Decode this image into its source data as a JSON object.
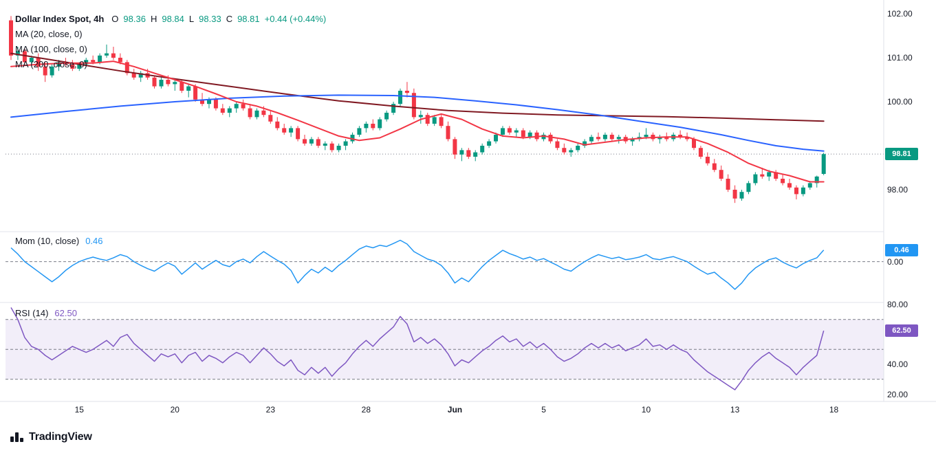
{
  "header": {
    "title": "Dollar Index Spot, 4h",
    "ohlc": {
      "o_key": "O",
      "o_val": "98.36",
      "h_key": "H",
      "h_val": "98.84",
      "l_key": "L",
      "l_val": "98.33",
      "c_key": "C",
      "c_val": "98.81",
      "change": "+0.44 (+0.44%)"
    },
    "ma_rows": [
      "MA (20, close, 0)",
      "MA (100, close, 0)",
      "MA (200, close, 0)"
    ]
  },
  "panes": {
    "momentum": {
      "label": "Mom (10, close)",
      "value_text": "0.46"
    },
    "rsi": {
      "label": "RSI (14)",
      "value_text": "62.50"
    }
  },
  "footer": {
    "logo_text": "TradingView"
  },
  "chart_data": {
    "type": "candlestick_with_indicators",
    "symbol": "Dollar Index Spot",
    "timeframe": "4h",
    "last_bar": {
      "open": 98.36,
      "high": 98.84,
      "low": 98.33,
      "close": 98.81,
      "change": 0.44,
      "change_pct": 0.44
    },
    "visible_price_range": [
      97.1,
      102.1
    ],
    "momentum_range": [
      -1.35,
      1.0
    ],
    "rsi_range": [
      20,
      80
    ],
    "price_ticks": [
      {
        "label": "102.00",
        "value": 102
      },
      {
        "label": "101.00",
        "value": 101
      },
      {
        "label": "100.00",
        "value": 100
      },
      {
        "label": "98.00",
        "value": 98
      }
    ],
    "time_ticks": [
      {
        "label": "15",
        "i": 10
      },
      {
        "label": "20",
        "i": 24
      },
      {
        "label": "23",
        "i": 38
      },
      {
        "label": "28",
        "i": 52
      },
      {
        "label": "Jun",
        "i": 65,
        "bold": true
      },
      {
        "label": "5",
        "i": 78
      },
      {
        "label": "10",
        "i": 93
      },
      {
        "label": "13",
        "i": 106
      },
      {
        "label": "18",
        "i": 120.5
      }
    ],
    "candles": [
      [
        101.85,
        101.95,
        100.95,
        101.05
      ],
      [
        101.05,
        101.25,
        100.95,
        101.15
      ],
      [
        101.15,
        101.2,
        100.85,
        100.9
      ],
      [
        100.9,
        101.05,
        100.8,
        101.0
      ],
      [
        101.0,
        101.1,
        100.7,
        100.8
      ],
      [
        100.8,
        100.9,
        100.45,
        100.6
      ],
      [
        100.6,
        100.85,
        100.55,
        100.8
      ],
      [
        100.8,
        100.95,
        100.7,
        100.9
      ],
      [
        100.9,
        101.0,
        100.8,
        100.85
      ],
      [
        100.85,
        100.95,
        100.7,
        100.75
      ],
      [
        100.75,
        100.9,
        100.7,
        100.85
      ],
      [
        100.85,
        101.0,
        100.8,
        100.95
      ],
      [
        100.95,
        101.05,
        100.85,
        100.9
      ],
      [
        100.9,
        101.1,
        100.85,
        101.05
      ],
      [
        101.05,
        101.3,
        101.0,
        101.1
      ],
      [
        101.1,
        101.25,
        100.95,
        101.0
      ],
      [
        101.0,
        101.1,
        100.85,
        100.9
      ],
      [
        100.9,
        100.95,
        100.6,
        100.65
      ],
      [
        100.65,
        100.75,
        100.5,
        100.55
      ],
      [
        100.55,
        100.7,
        100.45,
        100.65
      ],
      [
        100.65,
        100.75,
        100.5,
        100.55
      ],
      [
        100.55,
        100.6,
        100.3,
        100.35
      ],
      [
        100.35,
        100.55,
        100.3,
        100.5
      ],
      [
        100.5,
        100.6,
        100.35,
        100.4
      ],
      [
        100.4,
        100.5,
        100.25,
        100.45
      ],
      [
        100.45,
        100.5,
        100.2,
        100.25
      ],
      [
        100.25,
        100.4,
        100.1,
        100.35
      ],
      [
        100.35,
        100.4,
        100.0,
        100.05
      ],
      [
        100.05,
        100.2,
        99.9,
        99.95
      ],
      [
        99.95,
        100.1,
        99.85,
        100.05
      ],
      [
        100.05,
        100.1,
        99.8,
        99.85
      ],
      [
        99.85,
        99.95,
        99.7,
        99.75
      ],
      [
        99.75,
        99.9,
        99.65,
        99.85
      ],
      [
        99.85,
        100.0,
        99.75,
        99.95
      ],
      [
        99.95,
        100.05,
        99.8,
        99.85
      ],
      [
        99.85,
        99.95,
        99.6,
        99.65
      ],
      [
        99.65,
        99.85,
        99.6,
        99.8
      ],
      [
        99.8,
        99.9,
        99.65,
        99.7
      ],
      [
        99.7,
        99.8,
        99.5,
        99.55
      ],
      [
        99.55,
        99.65,
        99.35,
        99.4
      ],
      [
        99.4,
        99.5,
        99.25,
        99.3
      ],
      [
        99.3,
        99.45,
        99.2,
        99.4
      ],
      [
        99.4,
        99.45,
        99.1,
        99.15
      ],
      [
        99.15,
        99.25,
        99.0,
        99.05
      ],
      [
        99.05,
        99.2,
        99.0,
        99.15
      ],
      [
        99.15,
        99.2,
        98.95,
        99.0
      ],
      [
        99.0,
        99.1,
        98.9,
        99.05
      ],
      [
        99.05,
        99.1,
        98.85,
        98.9
      ],
      [
        98.9,
        99.05,
        98.85,
        99.0
      ],
      [
        99.0,
        99.15,
        98.9,
        99.1
      ],
      [
        99.1,
        99.3,
        99.05,
        99.25
      ],
      [
        99.25,
        99.45,
        99.2,
        99.4
      ],
      [
        99.4,
        99.55,
        99.3,
        99.5
      ],
      [
        99.5,
        99.6,
        99.35,
        99.4
      ],
      [
        99.4,
        99.65,
        99.35,
        99.6
      ],
      [
        99.6,
        99.8,
        99.55,
        99.75
      ],
      [
        99.75,
        100.0,
        99.7,
        99.95
      ],
      [
        99.95,
        100.3,
        99.9,
        100.25
      ],
      [
        100.25,
        100.45,
        100.1,
        100.2
      ],
      [
        100.2,
        100.3,
        99.6,
        99.65
      ],
      [
        99.65,
        99.8,
        99.5,
        99.7
      ],
      [
        99.7,
        99.75,
        99.45,
        99.5
      ],
      [
        99.5,
        99.7,
        99.45,
        99.65
      ],
      [
        99.65,
        99.7,
        99.4,
        99.45
      ],
      [
        99.45,
        99.55,
        99.1,
        99.15
      ],
      [
        99.15,
        99.2,
        98.7,
        98.8
      ],
      [
        98.8,
        98.95,
        98.65,
        98.9
      ],
      [
        98.9,
        98.95,
        98.7,
        98.75
      ],
      [
        98.75,
        98.9,
        98.65,
        98.85
      ],
      [
        98.85,
        99.05,
        98.8,
        99.0
      ],
      [
        99.0,
        99.15,
        98.95,
        99.1
      ],
      [
        99.1,
        99.3,
        99.05,
        99.25
      ],
      [
        99.25,
        99.45,
        99.2,
        99.4
      ],
      [
        99.4,
        99.45,
        99.25,
        99.3
      ],
      [
        99.3,
        99.4,
        99.2,
        99.35
      ],
      [
        99.35,
        99.4,
        99.15,
        99.2
      ],
      [
        99.2,
        99.35,
        99.15,
        99.3
      ],
      [
        99.3,
        99.35,
        99.1,
        99.15
      ],
      [
        99.15,
        99.3,
        99.1,
        99.25
      ],
      [
        99.25,
        99.3,
        99.05,
        99.1
      ],
      [
        99.1,
        99.15,
        98.9,
        98.95
      ],
      [
        98.95,
        99.05,
        98.8,
        98.85
      ],
      [
        98.85,
        98.95,
        98.75,
        98.9
      ],
      [
        98.9,
        99.05,
        98.85,
        99.0
      ],
      [
        99.0,
        99.15,
        98.95,
        99.1
      ],
      [
        99.1,
        99.25,
        99.05,
        99.2
      ],
      [
        99.2,
        99.3,
        99.1,
        99.15
      ],
      [
        99.15,
        99.3,
        99.1,
        99.25
      ],
      [
        99.25,
        99.3,
        99.1,
        99.15
      ],
      [
        99.15,
        99.25,
        99.05,
        99.2
      ],
      [
        99.2,
        99.25,
        99.05,
        99.1
      ],
      [
        99.1,
        99.2,
        99.0,
        99.15
      ],
      [
        99.15,
        99.3,
        99.1,
        99.2
      ],
      [
        99.2,
        99.4,
        99.15,
        99.25
      ],
      [
        99.25,
        99.3,
        99.1,
        99.15
      ],
      [
        99.15,
        99.25,
        99.05,
        99.2
      ],
      [
        99.2,
        99.3,
        99.1,
        99.15
      ],
      [
        99.15,
        99.3,
        99.1,
        99.25
      ],
      [
        99.25,
        99.35,
        99.15,
        99.2
      ],
      [
        99.2,
        99.3,
        99.1,
        99.15
      ],
      [
        99.15,
        99.2,
        98.9,
        98.95
      ],
      [
        98.95,
        99.0,
        98.7,
        98.75
      ],
      [
        98.75,
        98.85,
        98.55,
        98.6
      ],
      [
        98.6,
        98.7,
        98.4,
        98.45
      ],
      [
        98.45,
        98.55,
        98.2,
        98.25
      ],
      [
        98.25,
        98.35,
        97.95,
        98.0
      ],
      [
        98.0,
        98.1,
        97.7,
        97.8
      ],
      [
        97.8,
        98.0,
        97.75,
        97.95
      ],
      [
        97.95,
        98.2,
        97.9,
        98.15
      ],
      [
        98.15,
        98.4,
        98.1,
        98.35
      ],
      [
        98.35,
        98.5,
        98.25,
        98.3
      ],
      [
        98.3,
        98.45,
        98.2,
        98.4
      ],
      [
        98.4,
        98.45,
        98.2,
        98.25
      ],
      [
        98.25,
        98.35,
        98.1,
        98.15
      ],
      [
        98.15,
        98.25,
        98.0,
        98.05
      ],
      [
        98.05,
        98.1,
        97.78,
        97.9
      ],
      [
        97.9,
        98.1,
        97.85,
        98.05
      ],
      [
        98.05,
        98.2,
        98.0,
        98.15
      ],
      [
        98.15,
        98.32,
        98.05,
        98.3
      ],
      [
        98.36,
        98.84,
        98.33,
        98.81
      ]
    ],
    "ma20": {
      "period": 20,
      "color": "#f23645",
      "points": [
        [
          0,
          100.8
        ],
        [
          4,
          100.85
        ],
        [
          8,
          100.88
        ],
        [
          12,
          100.88
        ],
        [
          15,
          100.92
        ],
        [
          18,
          100.8
        ],
        [
          21,
          100.65
        ],
        [
          24,
          100.5
        ],
        [
          27,
          100.35
        ],
        [
          30,
          100.18
        ],
        [
          33,
          100.0
        ],
        [
          36,
          99.9
        ],
        [
          39,
          99.75
        ],
        [
          42,
          99.58
        ],
        [
          45,
          99.4
        ],
        [
          48,
          99.22
        ],
        [
          51,
          99.12
        ],
        [
          54,
          99.18
        ],
        [
          57,
          99.38
        ],
        [
          60,
          99.6
        ],
        [
          63,
          99.72
        ],
        [
          66,
          99.6
        ],
        [
          69,
          99.38
        ],
        [
          72,
          99.22
        ],
        [
          75,
          99.18
        ],
        [
          78,
          99.22
        ],
        [
          81,
          99.15
        ],
        [
          84,
          99.02
        ],
        [
          87,
          99.08
        ],
        [
          90,
          99.14
        ],
        [
          93,
          99.18
        ],
        [
          96,
          99.2
        ],
        [
          99,
          99.2
        ],
        [
          102,
          99.05
        ],
        [
          105,
          98.85
        ],
        [
          108,
          98.6
        ],
        [
          111,
          98.42
        ],
        [
          114,
          98.32
        ],
        [
          117,
          98.18
        ],
        [
          119,
          98.18
        ]
      ]
    },
    "ma100": {
      "period": 100,
      "color": "#2962ff",
      "points": [
        [
          0,
          99.65
        ],
        [
          8,
          99.78
        ],
        [
          16,
          99.9
        ],
        [
          24,
          100.0
        ],
        [
          32,
          100.08
        ],
        [
          40,
          100.13
        ],
        [
          48,
          100.15
        ],
        [
          56,
          100.14
        ],
        [
          62,
          100.1
        ],
        [
          68,
          100.02
        ],
        [
          74,
          99.93
        ],
        [
          80,
          99.82
        ],
        [
          86,
          99.7
        ],
        [
          92,
          99.56
        ],
        [
          98,
          99.42
        ],
        [
          104,
          99.25
        ],
        [
          108,
          99.12
        ],
        [
          112,
          99.0
        ],
        [
          116,
          98.92
        ],
        [
          119,
          98.88
        ]
      ]
    },
    "ma200": {
      "period": 200,
      "color": "#801922",
      "points": [
        [
          0,
          101.1
        ],
        [
          8,
          100.9
        ],
        [
          16,
          100.7
        ],
        [
          24,
          100.52
        ],
        [
          32,
          100.35
        ],
        [
          40,
          100.18
        ],
        [
          48,
          100.02
        ],
        [
          56,
          99.9
        ],
        [
          64,
          99.8
        ],
        [
          72,
          99.74
        ],
        [
          80,
          99.7
        ],
        [
          88,
          99.68
        ],
        [
          96,
          99.66
        ],
        [
          104,
          99.63
        ],
        [
          112,
          99.59
        ],
        [
          119,
          99.56
        ]
      ]
    },
    "momentum": {
      "period": 10,
      "last_value": 0.46,
      "ticks": [
        {
          "label": "0.00",
          "value": 0
        }
      ],
      "values": [
        0.55,
        0.3,
        0.0,
        -0.2,
        -0.4,
        -0.6,
        -0.8,
        -0.6,
        -0.35,
        -0.15,
        0.0,
        0.1,
        0.18,
        0.1,
        0.05,
        0.15,
        0.28,
        0.2,
        0.0,
        -0.15,
        -0.28,
        -0.38,
        -0.2,
        -0.05,
        -0.18,
        -0.5,
        -0.28,
        -0.05,
        -0.3,
        -0.12,
        0.05,
        -0.12,
        -0.2,
        0.0,
        0.1,
        -0.05,
        0.2,
        0.4,
        0.22,
        0.05,
        -0.1,
        -0.35,
        -0.85,
        -0.55,
        -0.3,
        -0.45,
        -0.22,
        -0.4,
        -0.15,
        0.05,
        0.28,
        0.5,
        0.62,
        0.55,
        0.65,
        0.6,
        0.72,
        0.85,
        0.7,
        0.4,
        0.25,
        0.1,
        0.02,
        -0.15,
        -0.45,
        -0.85,
        -0.65,
        -0.8,
        -0.5,
        -0.2,
        0.05,
        0.25,
        0.45,
        0.32,
        0.22,
        0.1,
        0.18,
        0.05,
        0.12,
        -0.02,
        -0.15,
        -0.3,
        -0.38,
        -0.18,
        0.0,
        0.15,
        0.28,
        0.2,
        0.12,
        0.18,
        0.08,
        0.12,
        0.18,
        0.28,
        0.12,
        0.08,
        0.15,
        0.2,
        0.1,
        0.0,
        -0.18,
        -0.35,
        -0.5,
        -0.42,
        -0.65,
        -0.85,
        -1.1,
        -0.85,
        -0.5,
        -0.25,
        -0.08,
        0.08,
        0.15,
        -0.02,
        -0.15,
        -0.25,
        -0.08,
        0.05,
        0.15,
        0.46
      ]
    },
    "rsi": {
      "period": 14,
      "last_value": 62.5,
      "levels": [
        70,
        50,
        30
      ],
      "ticks": [
        {
          "label": "80.00",
          "value": 80
        },
        {
          "label": "40.00",
          "value": 40
        },
        {
          "label": "20.00",
          "value": 20
        }
      ],
      "values": [
        78,
        70,
        58,
        52,
        50,
        46,
        43,
        46,
        49,
        52,
        50,
        48,
        50,
        53,
        56,
        52,
        58,
        60,
        54,
        50,
        46,
        42,
        47,
        45,
        47,
        41,
        46,
        48,
        42,
        46,
        44,
        41,
        45,
        48,
        46,
        41,
        46,
        51,
        47,
        42,
        39,
        43,
        36,
        33,
        38,
        34,
        38,
        32,
        37,
        41,
        47,
        52,
        56,
        52,
        57,
        61,
        65,
        72,
        67,
        55,
        58,
        54,
        57,
        53,
        47,
        39,
        43,
        41,
        45,
        49,
        52,
        56,
        59,
        55,
        57,
        52,
        55,
        51,
        54,
        50,
        45,
        42,
        44,
        47,
        51,
        54,
        51,
        54,
        51,
        53,
        49,
        51,
        53,
        57,
        52,
        53,
        50,
        53,
        50,
        48,
        43,
        39,
        35,
        32,
        29,
        26,
        23,
        29,
        36,
        41,
        45,
        48,
        44,
        41,
        38,
        33,
        38,
        42,
        46,
        62.5
      ]
    },
    "colors": {
      "up": "#089981",
      "down": "#f23645",
      "ma20": "#f23645",
      "ma100": "#2962ff",
      "ma200": "#801922",
      "mom": "#2196f3",
      "rsi": "#7e57c2",
      "rsi_band": "rgba(126,87,194,0.1)",
      "grid_dash": "#787b86",
      "text": "#131722"
    }
  }
}
